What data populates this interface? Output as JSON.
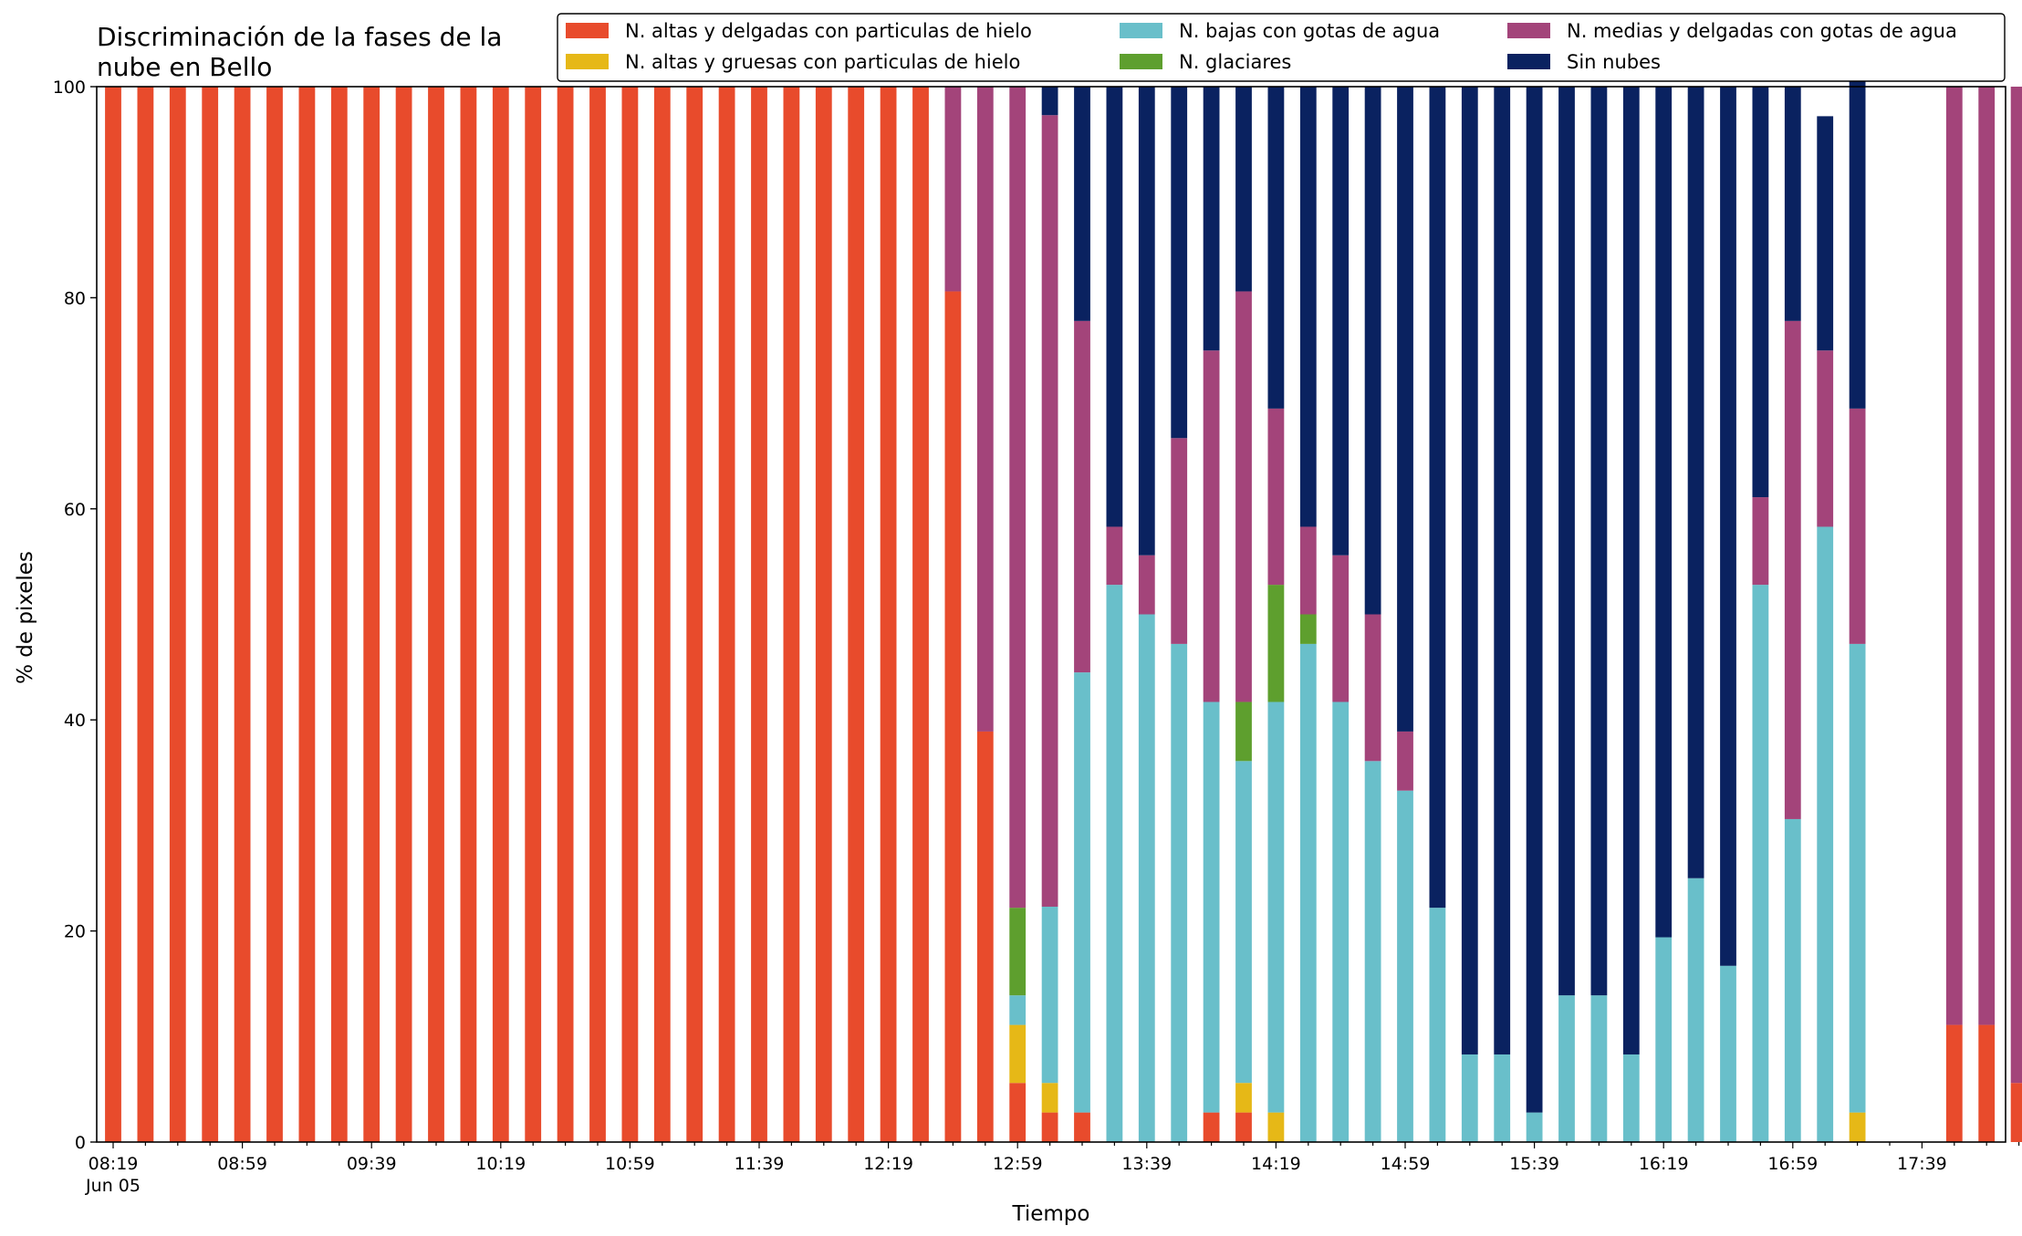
{
  "chart_data": {
    "type": "bar",
    "stacked": true,
    "title_lines": [
      "Discriminación de la fases de la",
      "nube en Bello"
    ],
    "xlabel": "Tiempo",
    "ylabel": "% de pixeles",
    "ylim": [
      0,
      100
    ],
    "yticks": [
      0,
      20,
      40,
      60,
      80,
      100
    ],
    "x_tick_labels": [
      "08:19",
      "08:59",
      "09:39",
      "10:19",
      "10:59",
      "11:39",
      "12:19",
      "12:59",
      "13:39",
      "14:19",
      "14:59",
      "15:39",
      "16:19",
      "16:59",
      "17:39"
    ],
    "x_date_label": "Jun 05",
    "x_tick_every": 4,
    "legend_position": "top-right",
    "grid": false,
    "series": [
      {
        "name": "N. altas y delgadas con particulas de hielo",
        "color": "#e84b2c",
        "values": [
          100,
          100,
          100,
          100,
          100,
          100,
          100,
          100,
          100,
          100,
          100,
          100,
          100,
          100,
          100,
          100,
          100,
          100,
          100,
          100,
          100,
          100,
          100,
          100,
          100,
          100,
          80.6,
          38.9,
          5.6,
          2.8,
          2.8,
          0,
          0,
          0,
          2.8,
          2.8,
          0,
          0,
          0,
          0,
          0,
          0,
          0,
          0,
          0,
          0,
          0,
          0,
          0,
          0,
          0,
          0,
          0,
          0,
          0,
          0,
          0,
          11.1,
          11.1,
          5.6
        ]
      },
      {
        "name": "N. altas y gruesas con particulas de hielo",
        "color": "#e6b817",
        "values": [
          0,
          0,
          0,
          0,
          0,
          0,
          0,
          0,
          0,
          0,
          0,
          0,
          0,
          0,
          0,
          0,
          0,
          0,
          0,
          0,
          0,
          0,
          0,
          0,
          0,
          0,
          0,
          0,
          5.5,
          2.8,
          0,
          0,
          0,
          0,
          0,
          2.8,
          2.8,
          0,
          0,
          0,
          0,
          0,
          0,
          0,
          0,
          0,
          0,
          0,
          0,
          0,
          0,
          0,
          0,
          0,
          2.8,
          0,
          0,
          0,
          0,
          0
        ]
      },
      {
        "name": "N. bajas con gotas de agua",
        "color": "#69bfca",
        "values": [
          0,
          0,
          0,
          0,
          0,
          0,
          0,
          0,
          0,
          0,
          0,
          0,
          0,
          0,
          0,
          0,
          0,
          0,
          0,
          0,
          0,
          0,
          0,
          0,
          0,
          0,
          0,
          0,
          2.8,
          16.7,
          41.7,
          52.8,
          50,
          47.2,
          38.9,
          30.5,
          38.9,
          47.2,
          41.7,
          36.1,
          33.3,
          22.2,
          8.3,
          8.3,
          2.8,
          13.9,
          13.9,
          8.3,
          19.4,
          25,
          16.7,
          52.8,
          30.6,
          58.3,
          44.4,
          0,
          0,
          0,
          0,
          0
        ]
      },
      {
        "name": "N. glaciares",
        "color": "#5e9f2e",
        "values": [
          0,
          0,
          0,
          0,
          0,
          0,
          0,
          0,
          0,
          0,
          0,
          0,
          0,
          0,
          0,
          0,
          0,
          0,
          0,
          0,
          0,
          0,
          0,
          0,
          0,
          0,
          0,
          0,
          8.3,
          0,
          0,
          0,
          0,
          0,
          0,
          5.6,
          11.1,
          2.8,
          0,
          0,
          0,
          0,
          0,
          0,
          0,
          0,
          0,
          0,
          0,
          0,
          0,
          0,
          0,
          0,
          0,
          0,
          0,
          0,
          0,
          0
        ]
      },
      {
        "name": "N. medias y delgadas con gotas de agua",
        "color": "#a3447a",
        "values": [
          0,
          0,
          0,
          0,
          0,
          0,
          0,
          0,
          0,
          0,
          0,
          0,
          0,
          0,
          0,
          0,
          0,
          0,
          0,
          0,
          0,
          0,
          0,
          0,
          0,
          0,
          19.4,
          61.1,
          77.8,
          75,
          33.3,
          5.5,
          5.6,
          19.5,
          33.3,
          38.9,
          16.7,
          8.3,
          13.9,
          13.9,
          5.6,
          0,
          0,
          0,
          0,
          0,
          0,
          0,
          0,
          0,
          0,
          8.3,
          47.2,
          16.7,
          22.3,
          0,
          0,
          88.9,
          88.9,
          94.4
        ]
      },
      {
        "name": "Sin nubes",
        "color": "#0a2260",
        "values": [
          0,
          0,
          0,
          0,
          0,
          0,
          0,
          0,
          0,
          0,
          0,
          0,
          0,
          0,
          0,
          0,
          0,
          0,
          0,
          0,
          0,
          0,
          0,
          0,
          0,
          0,
          0,
          0,
          0,
          2.7,
          22.2,
          41.7,
          44.4,
          33.3,
          25,
          19.4,
          30.5,
          41.7,
          44.4,
          50,
          61.1,
          77.8,
          91.7,
          91.7,
          97.2,
          86.1,
          86.1,
          91.7,
          80.6,
          75,
          83.3,
          38.9,
          22.2,
          22.2,
          33.3,
          0,
          0,
          0,
          0,
          0
        ]
      }
    ],
    "legend_order": [
      0,
      1,
      2,
      3,
      4,
      5
    ]
  }
}
